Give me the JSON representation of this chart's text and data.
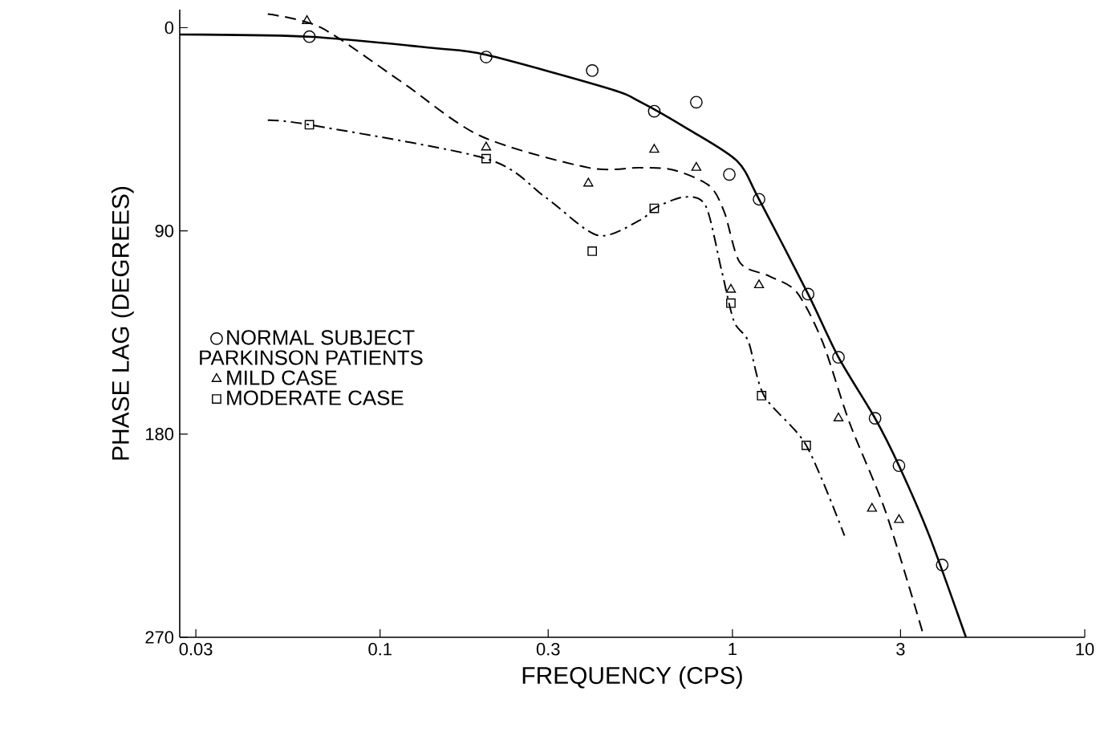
{
  "chart_data": {
    "type": "scatter",
    "xlabel": "FREQUENCY (CPS)",
    "ylabel": "PHASE LAG (DEGREES)",
    "log": "x",
    "xlim": [
      0.027,
      10
    ],
    "xticks": [
      0.03,
      0.1,
      0.3,
      1,
      3,
      10
    ],
    "ylim": [
      270,
      -8
    ],
    "yticks": [
      0,
      90,
      180,
      270
    ],
    "legend": "left",
    "legend_title": "PARKINSON PATIENTS",
    "series": [
      {
        "name": "NORMAL SUBJECT",
        "type": "scatter",
        "marker": "circle",
        "color": "#000000",
        "x": [
          0.063,
          0.2,
          0.4,
          0.6,
          0.79,
          0.98,
          1.19,
          1.64,
          2.0,
          2.54,
          2.97,
          3.94
        ],
        "values": [
          4,
          13,
          19,
          37,
          33,
          65,
          76,
          118,
          146,
          173,
          194,
          238
        ]
      },
      {
        "name": "MILD CASE",
        "type": "scatter",
        "marker": "triangle",
        "color": "#000000",
        "x": [
          0.062,
          0.2,
          0.39,
          0.6,
          0.79,
          0.99,
          1.19,
          2.0,
          2.49,
          2.97
        ],
        "values": [
          -3,
          53,
          69,
          54,
          62,
          116,
          114,
          173,
          213,
          218
        ]
      },
      {
        "name": "MODERATE CASE",
        "type": "scatter",
        "marker": "square",
        "color": "#000000",
        "x": [
          0.063,
          0.2,
          0.4,
          0.6,
          0.99,
          1.21,
          1.62
        ],
        "values": [
          43,
          58,
          99,
          80,
          122,
          163,
          185
        ]
      },
      {
        "type": "line",
        "line_style": "solid",
        "color": "#000000",
        "x": [
          0.027,
          0.063,
          0.141,
          0.2,
          0.447,
          0.55,
          0.75,
          1.03,
          1.19,
          1.64,
          2.0,
          2.54,
          2.97,
          3.62,
          4.6
        ],
        "values": [
          3,
          4,
          9,
          12,
          27,
          33,
          45,
          59,
          76,
          118,
          146,
          173,
          194,
          225,
          270
        ]
      },
      {
        "type": "line",
        "line_style": "dashed",
        "color": "#000000",
        "x": [
          0.048,
          0.068,
          0.115,
          0.193,
          0.39,
          0.55,
          0.68,
          0.86,
          0.95,
          1.05,
          1.27,
          1.52,
          1.8,
          2.15,
          2.73,
          3.5
        ],
        "values": [
          -6,
          0,
          24,
          48,
          62,
          62,
          63,
          70,
          82,
          104,
          110,
          117,
          139,
          175,
          215,
          270
        ]
      },
      {
        "type": "line",
        "line_style": "dashdot",
        "color": "#000000",
        "x": [
          0.048,
          0.063,
          0.2,
          0.294,
          0.415,
          0.55,
          0.6,
          0.73,
          0.84,
          0.93,
          1.01,
          1.11,
          1.23,
          1.62,
          2.08
        ],
        "values": [
          41,
          43,
          58,
          75,
          92,
          85,
          80,
          75,
          79,
          107,
          130,
          139,
          163,
          185,
          225
        ]
      }
    ]
  }
}
